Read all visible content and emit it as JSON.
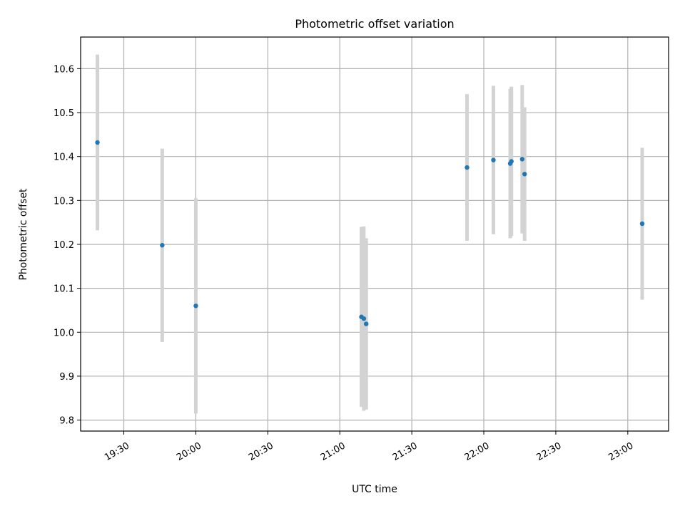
{
  "chart_data": {
    "type": "scatter",
    "title": "Photometric offset variation",
    "xlabel": "UTC time",
    "ylabel": "Photometric offset",
    "x_axis": {
      "kind": "time",
      "range": [
        "19:12",
        "23:17"
      ],
      "ticks": [
        "19:30",
        "20:00",
        "20:30",
        "21:00",
        "21:30",
        "22:00",
        "22:30",
        "23:00"
      ]
    },
    "y_axis": {
      "range": [
        9.775,
        10.672
      ],
      "ticks": [
        "9.8",
        "9.9",
        "10.0",
        "10.1",
        "10.2",
        "10.3",
        "10.4",
        "10.5",
        "10.6"
      ]
    },
    "grid": true,
    "colors": {
      "point": "#1f77b4",
      "error_bar": "#d3d3d3",
      "grid": "#b0b0b0"
    },
    "series": [
      {
        "points": [
          {
            "x": "19:19",
            "y": 10.432,
            "err": 0.2
          },
          {
            "x": "19:46",
            "y": 10.198,
            "err": 0.22
          },
          {
            "x": "20:00",
            "y": 10.06,
            "err": 0.245
          },
          {
            "x": "21:09",
            "y": 10.035,
            "err": 0.205
          },
          {
            "x": "21:10",
            "y": 10.031,
            "err": 0.21
          },
          {
            "x": "21:11",
            "y": 10.019,
            "err": 0.195
          },
          {
            "x": "21:53",
            "y": 10.375,
            "err": 0.167
          },
          {
            "x": "22:04",
            "y": 10.392,
            "err": 0.169
          },
          {
            "x": "22:11",
            "y": 10.384,
            "err": 0.17
          },
          {
            "x": "22:11.5",
            "y": 10.389,
            "err": 0.17
          },
          {
            "x": "22:16",
            "y": 10.394,
            "err": 0.169
          },
          {
            "x": "22:17",
            "y": 10.36,
            "err": 0.152
          },
          {
            "x": "23:06",
            "y": 10.247,
            "err": 0.173
          }
        ]
      }
    ]
  }
}
